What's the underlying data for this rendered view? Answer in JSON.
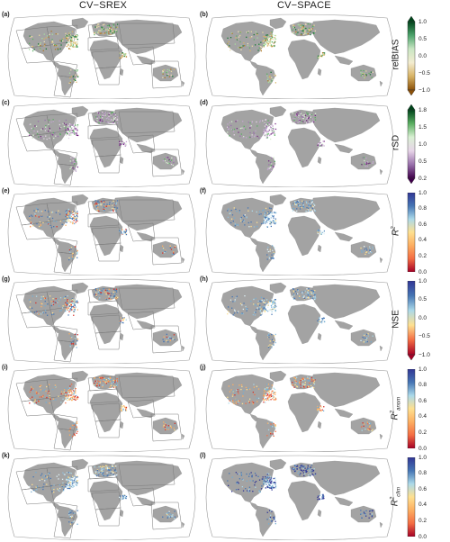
{
  "columns": [
    "CV−SREX",
    "CV−SPACE"
  ],
  "rows": [
    {
      "left": "(a)",
      "right": "(b)",
      "metric": "relBIAS",
      "sup": "",
      "sub": "",
      "ticks": [
        "1.0",
        "0.5",
        "0.0",
        "−0.5",
        "−1.0"
      ],
      "colors": [
        "#00441b",
        "#4ca36b",
        "#c9e6c3",
        "#f3ecd0",
        "#d8b365",
        "#8c510a"
      ],
      "extend": "both",
      "lpal": "bias",
      "rpal": "bias"
    },
    {
      "left": "(c)",
      "right": "(d)",
      "metric": "rSD",
      "sup": "",
      "sub": "",
      "ticks": [
        "1.8",
        "1.5",
        "1.0",
        "0.5",
        "0.2"
      ],
      "colors": [
        "#00441b",
        "#5aae61",
        "#d9f0d3",
        "#e7d4e8",
        "#9970ab",
        "#40004b"
      ],
      "extend": "both",
      "lpal": "rsd",
      "rpal": "rsd"
    },
    {
      "left": "(e)",
      "right": "(f)",
      "metric": "R",
      "sup": "2",
      "sub": "",
      "ticks": [
        "1.0",
        "0.8",
        "0.6",
        "0.4",
        "0.2",
        "0.0"
      ],
      "colors": [
        "#313695",
        "#4575b4",
        "#abd9e9",
        "#fee090",
        "#fdae61",
        "#f46d43",
        "#a50026"
      ],
      "extend": "none",
      "lpal": "mixed",
      "rpal": "blue"
    },
    {
      "left": "(g)",
      "right": "(h)",
      "metric": "NSE",
      "sup": "",
      "sub": "",
      "ticks": [
        "1.0",
        "0.5",
        "0.0",
        "−0.5",
        "−1.0"
      ],
      "colors": [
        "#313695",
        "#4575b4",
        "#abd9e9",
        "#fee090",
        "#f46d43",
        "#a50026"
      ],
      "extend": "min",
      "lpal": "mixed",
      "rpal": "blue"
    },
    {
      "left": "(i)",
      "right": "(j)",
      "metric": "R",
      "sup": "2",
      "sub": "anom",
      "ticks": [
        "1.0",
        "0.8",
        "0.6",
        "0.4",
        "0.2",
        "0.0"
      ],
      "colors": [
        "#313695",
        "#4575b4",
        "#abd9e9",
        "#fee090",
        "#fdae61",
        "#f46d43",
        "#a50026"
      ],
      "extend": "none",
      "lpal": "warm",
      "rpal": "warm"
    },
    {
      "left": "(k)",
      "right": "(l)",
      "metric": "R",
      "sup": "2",
      "sub": "clim",
      "ticks": [
        "1.0",
        "0.8",
        "0.6",
        "0.4",
        "0.2",
        "0.0"
      ],
      "colors": [
        "#313695",
        "#4575b4",
        "#abd9e9",
        "#fee090",
        "#fdae61",
        "#f46d43",
        "#a50026"
      ],
      "extend": "none",
      "lpal": "blue",
      "rpal": "deepblue"
    }
  ]
}
